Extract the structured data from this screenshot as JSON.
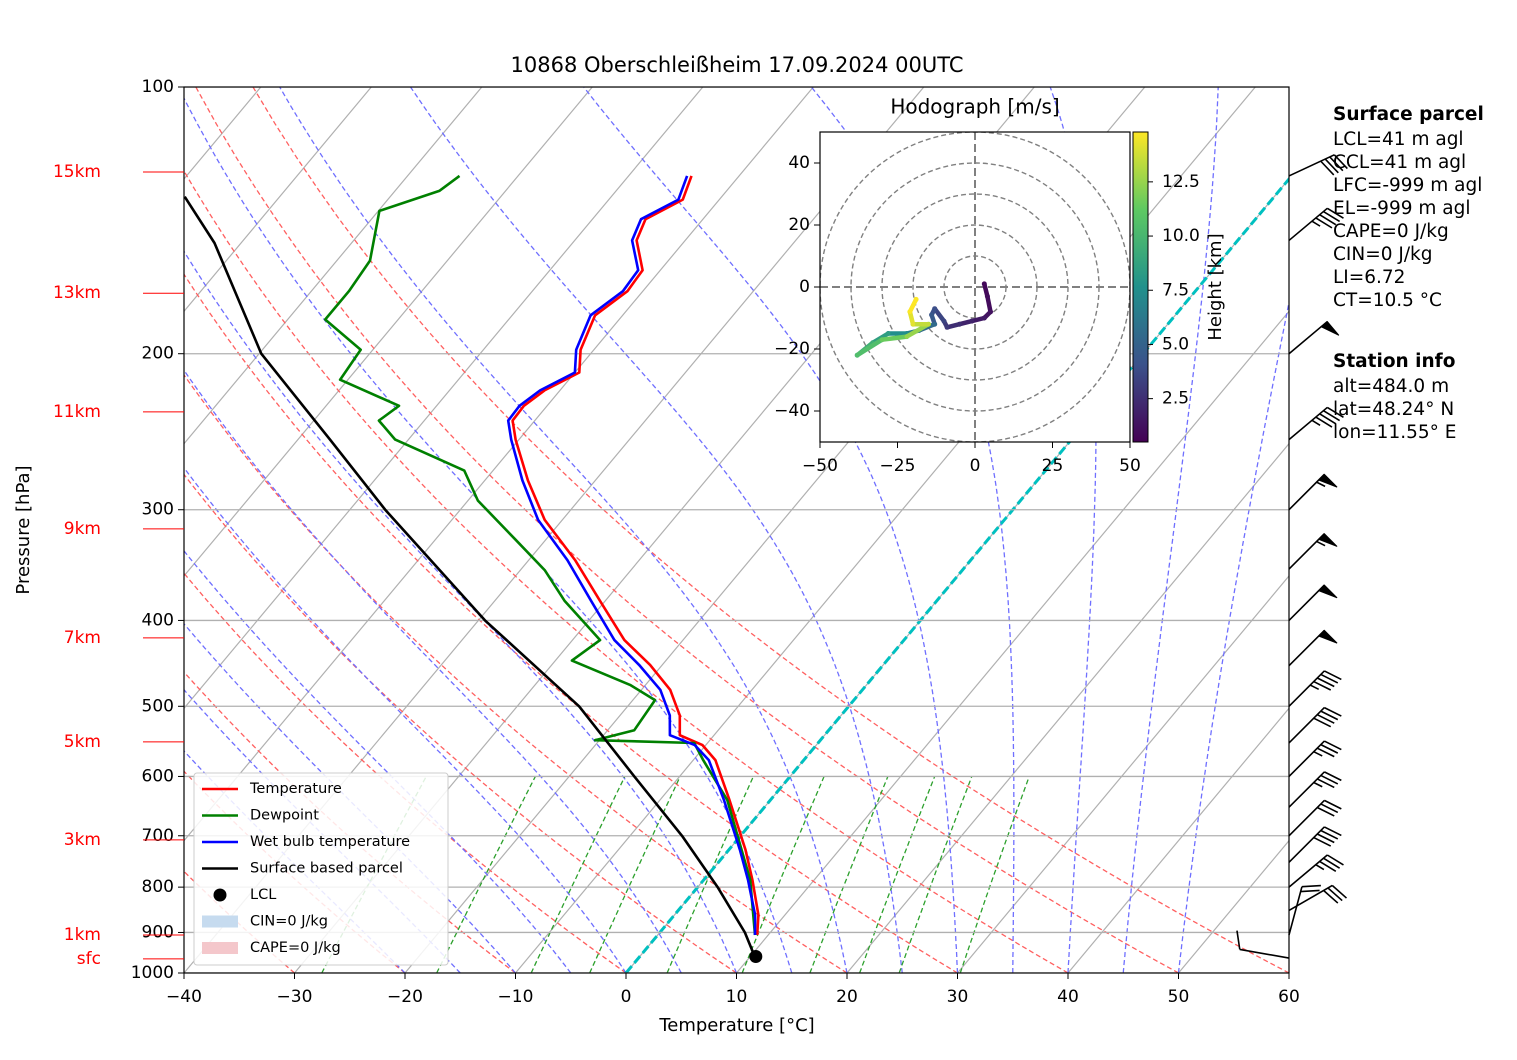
{
  "chart_data": {
    "type": "skewt",
    "title": "10868 Oberschleißheim 17.09.2024 00UTC",
    "xlabel": "Temperature [°C]",
    "ylabel": "Pressure [hPa]",
    "xlim": [
      -40,
      60
    ],
    "ylim": [
      1000,
      100
    ],
    "y_log": true,
    "grid": true,
    "xticks": [
      {
        "value": -40,
        "label": "−40"
      },
      {
        "value": -30,
        "label": "−30"
      },
      {
        "value": -20,
        "label": "−20"
      },
      {
        "value": -10,
        "label": "−10"
      },
      0,
      10,
      20,
      30,
      40,
      50,
      60
    ],
    "yticks": [
      100,
      200,
      300,
      400,
      500,
      600,
      700,
      800,
      900,
      1000
    ],
    "series": [
      {
        "name": "Temperature",
        "color": "#ff0000",
        "pressure": [
          906,
          860,
          785,
          726,
          638,
          575,
          553,
          539,
          512,
          479,
          449,
          421,
          380,
          342,
          308,
          278,
          250,
          238,
          229,
          220,
          210,
          198,
          181,
          170,
          161,
          149,
          141,
          134,
          126
        ],
        "temperature": [
          9.0,
          7.6,
          4.4,
          1.5,
          -3.7,
          -8.0,
          -10.3,
          -13.1,
          -14.6,
          -17.4,
          -21.1,
          -25.3,
          -30.5,
          -35.8,
          -41.6,
          -46.1,
          -50.3,
          -52.0,
          -52.1,
          -51.4,
          -49.6,
          -51.2,
          -52.5,
          -51.4,
          -51.6,
          -54.4,
          -55.2,
          -53.3,
          -54.3
        ]
      },
      {
        "name": "Dewpoint",
        "color": "#008000",
        "pressure": [
          906,
          785,
          638,
          575,
          550,
          546,
          532,
          492,
          473,
          444,
          421,
          380,
          351,
          324,
          293,
          271,
          250,
          238,
          229,
          214,
          198,
          183,
          170,
          157,
          138,
          131,
          126
        ],
        "temperature": [
          8.8,
          4.2,
          -3.9,
          -9.1,
          -11.2,
          -20.4,
          -17.6,
          -18.0,
          -21.4,
          -28.5,
          -27.5,
          -33.7,
          -37.8,
          -42.8,
          -49.1,
          -52.6,
          -61.2,
          -64.1,
          -63.4,
          -70.7,
          -71.1,
          -76.6,
          -76.6,
          -77.0,
          -79.9,
          -76.0,
          -75.3
        ]
      },
      {
        "name": "Wet bulb temperature",
        "color": "#0000ff",
        "pressure": [
          906,
          860,
          785,
          726,
          638,
          575,
          553,
          539,
          512,
          479,
          449,
          421,
          380,
          342,
          308,
          278,
          250,
          238,
          229,
          220,
          210,
          198,
          181,
          170,
          161,
          149,
          141,
          134,
          126
        ],
        "temperature": [
          8.8,
          7.3,
          4.0,
          1.0,
          -4.2,
          -8.6,
          -11.0,
          -14.0,
          -15.5,
          -18.3,
          -22.1,
          -26.2,
          -31.3,
          -36.5,
          -42.2,
          -46.6,
          -50.7,
          -52.4,
          -52.5,
          -51.8,
          -50.0,
          -51.6,
          -52.9,
          -51.8,
          -52.0,
          -54.8,
          -55.6,
          -53.7,
          -54.7
        ]
      },
      {
        "name": "Surface based parcel",
        "color": "#000000",
        "pressure": [
          958,
          900,
          800,
          700,
          600,
          500,
          400,
          300,
          250,
          200,
          150,
          133
        ],
        "temperature": [
          10.4,
          7.7,
          1.8,
          -5.3,
          -14.1,
          -24.4,
          -39.4,
          -56.8,
          -67.1,
          -79.8,
          -92.4,
          -98.6
        ]
      }
    ],
    "lcl": {
      "name": "LCL",
      "pressure": 958,
      "temperature": 10.5,
      "color": "#000000"
    },
    "shading": [
      {
        "name": "CIN=0 J/kg",
        "color": "#c6dbef"
      },
      {
        "name": "CAPE=0 J/kg",
        "color": "#f4c7cb"
      }
    ],
    "height_labels": [
      {
        "label": "15km",
        "pressure": 124.7
      },
      {
        "label": "13km",
        "pressure": 170.9
      },
      {
        "label": "11km",
        "pressure": 232.6
      },
      {
        "label": "9km",
        "pressure": 315.3
      },
      {
        "label": "7km",
        "pressure": 418.6
      },
      {
        "label": "5km",
        "pressure": 548.5
      },
      {
        "label": "3km",
        "pressure": 707.5
      },
      {
        "label": "1km",
        "pressure": 906
      },
      {
        "label": "sfc",
        "pressure": 964
      }
    ],
    "wind_barbs": {
      "pressure": [
        126,
        149,
        200,
        250,
        300,
        350,
        400,
        450,
        500,
        550,
        600,
        650,
        700,
        750,
        800,
        850,
        906,
        962
      ],
      "speed": [
        40,
        45,
        50,
        45,
        55,
        55,
        50,
        50,
        45,
        40,
        35,
        35,
        30,
        40,
        35,
        30,
        20,
        10
      ],
      "direction": [
        65,
        50,
        50,
        50,
        45,
        45,
        45,
        45,
        45,
        45,
        45,
        45,
        45,
        45,
        50,
        60,
        15,
        280
      ]
    },
    "hodograph": {
      "title": "Hodograph [m/s]",
      "xlim": [
        -50,
        50
      ],
      "ylim": [
        -50,
        50
      ],
      "xticks": [
        {
          "value": -50,
          "label": "−50"
        },
        {
          "value": -25,
          "label": "−25"
        },
        0,
        25,
        50
      ],
      "yticks": [
        40,
        20,
        0,
        {
          "value": -20,
          "label": "−20"
        },
        {
          "value": -40,
          "label": "−40"
        }
      ],
      "rings": [
        10,
        20,
        30,
        40,
        50
      ],
      "height": [
        0.5,
        0.8,
        1.0,
        1.3,
        1.6,
        2.0,
        2.5,
        3.0,
        3.5,
        4.0,
        4.5,
        5.5,
        6.5,
        7.5,
        8.5,
        9.5,
        10.5,
        11.5,
        12.5,
        13.5,
        14.2,
        14.8
      ],
      "u": [
        3,
        4,
        5,
        3,
        -1,
        -5,
        -9,
        -10,
        -13,
        -14,
        -13,
        -18,
        -22,
        -28,
        -33,
        -38,
        -30,
        -22,
        -15,
        -20,
        -21,
        -19
      ],
      "v": [
        1,
        -3,
        -8,
        -10,
        -11,
        -12,
        -13,
        -11,
        -7,
        -9,
        -12,
        -14,
        -15,
        -15,
        -18,
        -22,
        -17,
        -16,
        -12,
        -12,
        -8,
        -4
      ],
      "colorbar": {
        "label": "Height [km]",
        "clim": [
          0.5,
          14.8
        ],
        "ticks": [
          2.5,
          {
            "value": 5.0,
            "label": "5.0"
          },
          7.5,
          {
            "value": 10.0,
            "label": "10.0"
          },
          12.5
        ]
      }
    },
    "info": [
      {
        "title": "Surface parcel",
        "lines": [
          "LCL=41 m agl",
          "CCL=41 m agl",
          "LFC=-999 m agl",
          "EL=-999 m agl",
          "CAPE=0 J/kg",
          "CIN=0 J/kg",
          "LI=6.72",
          "CT=10.5 °C"
        ]
      },
      {
        "title": "Station info",
        "lines": [
          "alt=484.0 m",
          "lat=48.24° N",
          "lon=11.55° E"
        ]
      }
    ]
  }
}
